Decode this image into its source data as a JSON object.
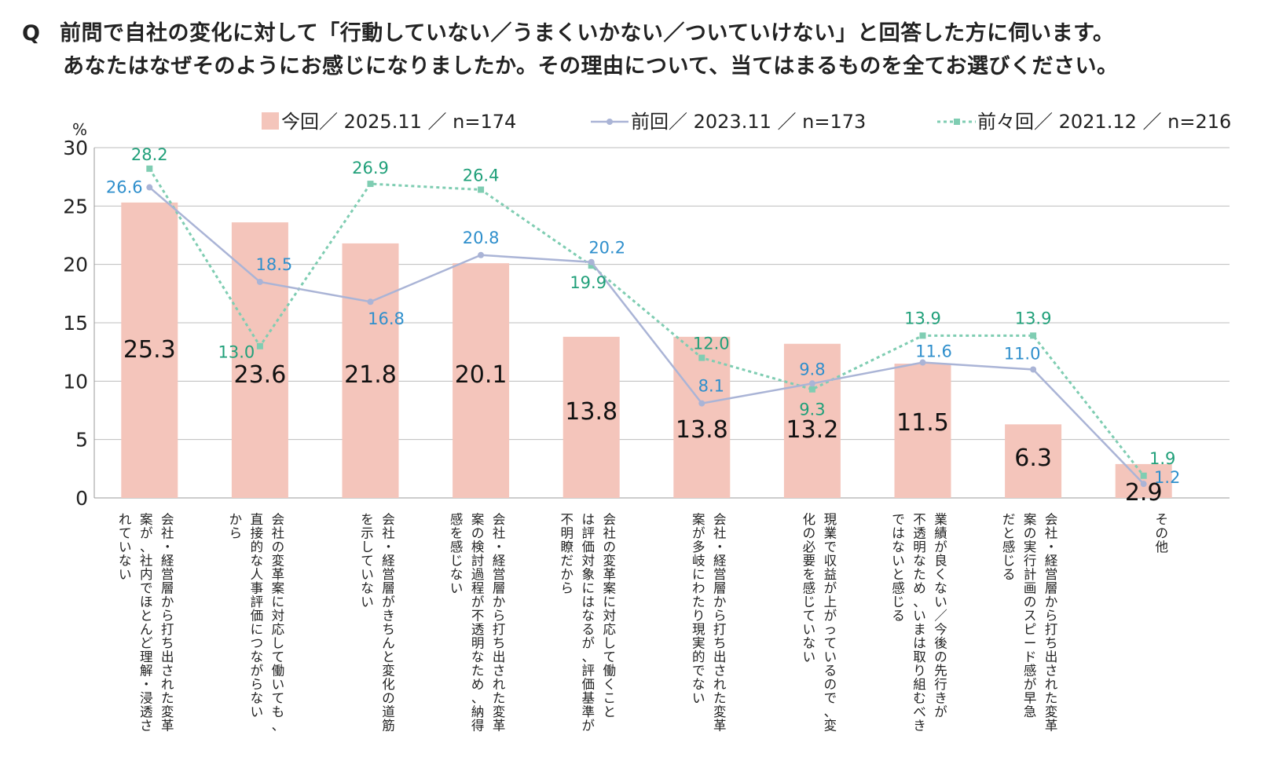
{
  "question": {
    "prefix": "Q",
    "line1": "前問で自社の変化に対して「行動していない／うまくいかない／ついていけない」と回答した方に伺います。",
    "line2": "あなたはなぜそのようにお感じになりましたか。その理由について、当てはまるものを全てお選びください。"
  },
  "chart_data": {
    "type": "bar",
    "unit_label": "%",
    "ylim": [
      0,
      30
    ],
    "yticks": [
      0,
      5,
      10,
      15,
      20,
      25,
      30
    ],
    "grid": true,
    "legend_position": "top",
    "categories": [
      "会社・経営層から打ち出された変革案が、社内でほとんど理解・浸透されていない",
      "会社の変革案に対応して働いても、直接的な人事評価につながらないから",
      "会社・経営層がきちんと変化の道筋を示していない",
      "会社・経営層から打ち出された変革案の検討過程が不透明なため、納得感を感じない",
      "会社の変革案に対応して働くことは評価対象にはなるが、評価基準が不明瞭だから",
      "会社・経営層から打ち出された変革案が多岐にわたり現実的でない",
      "現業で収益が上がっているので、変化の必要を感じていない",
      "業績が良くない／今後の先行きが不透明なため、いまは取り組むべきではないと感じる",
      "会社・経営層から打ち出された変革案の実行計画のスピード感が早急だと感じる",
      "その他"
    ],
    "category_lines": [
      [
        "会社・経営層から打ち出された変革",
        "案が、社内でほとんど理解・浸透さ",
        "れていない"
      ],
      [
        "会社の変革案に対応して働いても、",
        "直接的な人事評価につながらない",
        "から"
      ],
      [
        "会社・経営層がきちんと変化の道筋",
        "を示していない"
      ],
      [
        "会社・経営層から打ち出された変革",
        "案の検討過程が不透明なため、納得",
        "感を感じない"
      ],
      [
        "会社の変革案に対応して働くこと",
        "は評価対象にはなるが、評価基準が",
        "不明瞭だから"
      ],
      [
        "会社・経営層から打ち出された変革",
        "案が多岐にわたり現実的でない"
      ],
      [
        "現業で収益が上がっているので、変",
        "化の必要を感じていない"
      ],
      [
        "業績が良くない／今後の先行きが",
        "不透明なため、いまは取り組むべき",
        "ではないと感じる"
      ],
      [
        "会社・経営層から打ち出された変革",
        "案の実行計画のスピード感が早急",
        "だと感じる"
      ],
      [
        "その他"
      ]
    ],
    "series": [
      {
        "name": "今回／ 2025.11 ／ n=174",
        "type": "bar",
        "color": "#f4c5bb",
        "label_color": "#111111",
        "values": [
          25.3,
          23.6,
          21.8,
          20.1,
          13.8,
          13.8,
          13.2,
          11.5,
          6.3,
          2.9
        ],
        "labels": [
          "25.3",
          "23.6",
          "21.8",
          "20.1",
          "13.8",
          "13.8",
          "13.2",
          "11.5",
          "6.3",
          "2.9"
        ]
      },
      {
        "name": "前回／ 2023.11 ／ n=173",
        "type": "line",
        "color": "#aab4d6",
        "label_color": "#2f8fcc",
        "values": [
          26.6,
          18.5,
          16.8,
          20.8,
          20.2,
          8.1,
          9.8,
          11.6,
          11.0,
          1.2
        ],
        "labels": [
          "26.6",
          "18.5",
          "16.8",
          "20.8",
          "20.2",
          "8.1",
          "9.8",
          "11.6",
          "11.0",
          "1.2"
        ]
      },
      {
        "name": "前々回／ 2021.12 ／ n=216",
        "type": "dotted-line",
        "color": "#7fcdb2",
        "label_color": "#21a07a",
        "values": [
          28.2,
          13.0,
          26.9,
          26.4,
          19.9,
          12.0,
          9.3,
          13.9,
          13.9,
          1.9
        ],
        "labels": [
          "28.2",
          "13.0",
          "26.9",
          "26.4",
          "19.9",
          "12.0",
          "9.3",
          "13.9",
          "13.9",
          "1.9"
        ]
      }
    ]
  }
}
